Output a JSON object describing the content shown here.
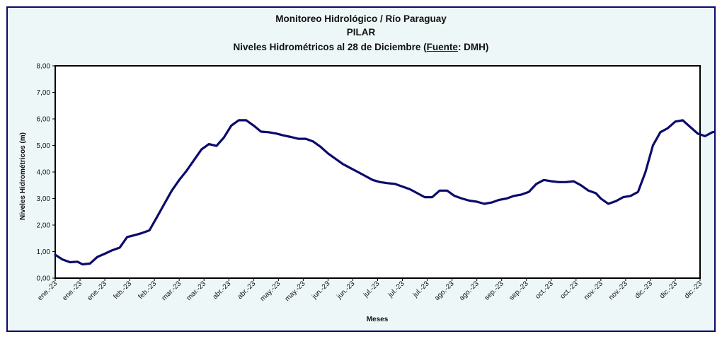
{
  "chart_data": {
    "type": "line",
    "title": "Monitoreo Hidrológico / Río Paraguay",
    "subtitle": "PILAR",
    "subtitle2": {
      "prefix": "Niveles Hidrométricos al 28 de Diciembre (",
      "source_label": "Fuente",
      "suffix": ": DMH)"
    },
    "xlabel": "Meses",
    "ylabel": "Niveles Hidrométricos (m)",
    "ylim": [
      0,
      8
    ],
    "y_ticks": [
      "0,00",
      "1,00",
      "2,00",
      "3,00",
      "4,00",
      "5,00",
      "6,00",
      "7,00",
      "8,00"
    ],
    "x_ticks": [
      "ene.-23",
      "ene.-23",
      "ene.-23",
      "feb.-23",
      "feb.-23",
      "mar.-23",
      "mar.-23",
      "abr.-23",
      "abr.-23",
      "may.-23",
      "may.-23",
      "jun.-23",
      "jun.-23",
      "jul.-23",
      "jul.-23",
      "jul.-23",
      "ago.-23",
      "ago.-23",
      "sep.-23",
      "sep.-23",
      "oct.-23",
      "oct.-23",
      "nov.-23",
      "nov.-23",
      "dic.-23",
      "dic.-23",
      "dic.-23"
    ],
    "grid": false,
    "legend": "none",
    "series": [
      {
        "color": "#0b0b6b",
        "x": [
          0,
          0.3,
          0.6,
          0.9,
          1.1,
          1.4,
          1.7,
          2.0,
          2.3,
          2.6,
          2.9,
          3.2,
          3.5,
          3.8,
          4.1,
          4.4,
          4.7,
          5.0,
          5.3,
          5.6,
          5.9,
          6.2,
          6.5,
          6.8,
          7.1,
          7.4,
          7.7,
          8.0,
          8.3,
          8.6,
          8.9,
          9.2,
          9.5,
          9.8,
          10.1,
          10.4,
          10.7,
          11.0,
          11.3,
          11.6,
          11.9,
          12.2,
          12.5,
          12.8,
          13.1,
          13.4,
          13.7,
          14.0,
          14.3,
          14.6,
          14.9,
          15.2,
          15.5,
          15.8,
          16.1,
          16.4,
          16.7,
          17.0,
          17.3,
          17.6,
          17.9,
          18.2,
          18.5,
          18.8,
          19.1,
          19.4,
          19.7,
          20.0,
          20.3,
          20.6,
          20.9,
          21.2,
          21.5,
          21.8,
          22.0,
          22.3,
          22.6,
          22.9,
          23.2,
          23.5,
          23.8,
          24.1,
          24.4,
          24.7,
          25.0,
          25.3,
          25.6,
          25.9,
          26.2,
          26.5,
          26.8,
          27.1
        ],
        "y": [
          0.88,
          0.7,
          0.6,
          0.62,
          0.52,
          0.55,
          0.8,
          0.92,
          1.05,
          1.15,
          1.55,
          1.62,
          1.7,
          1.8,
          2.3,
          2.8,
          3.3,
          3.7,
          4.05,
          4.45,
          4.85,
          5.05,
          4.98,
          5.3,
          5.75,
          5.95,
          5.95,
          5.75,
          5.52,
          5.5,
          5.45,
          5.38,
          5.32,
          5.25,
          5.25,
          5.15,
          4.95,
          4.7,
          4.5,
          4.3,
          4.15,
          4.0,
          3.85,
          3.7,
          3.62,
          3.58,
          3.55,
          3.45,
          3.35,
          3.2,
          3.05,
          3.05,
          3.3,
          3.3,
          3.1,
          3.0,
          2.92,
          2.88,
          2.8,
          2.85,
          2.95,
          3.0,
          3.1,
          3.15,
          3.25,
          3.55,
          3.7,
          3.65,
          3.62,
          3.62,
          3.65,
          3.5,
          3.3,
          3.2,
          3.0,
          2.8,
          2.9,
          3.05,
          3.1,
          3.25,
          4.0,
          5.0,
          5.5,
          5.65,
          5.9,
          5.95,
          5.7,
          5.45,
          5.35,
          5.5,
          5.55,
          5.3
        ]
      }
    ]
  }
}
